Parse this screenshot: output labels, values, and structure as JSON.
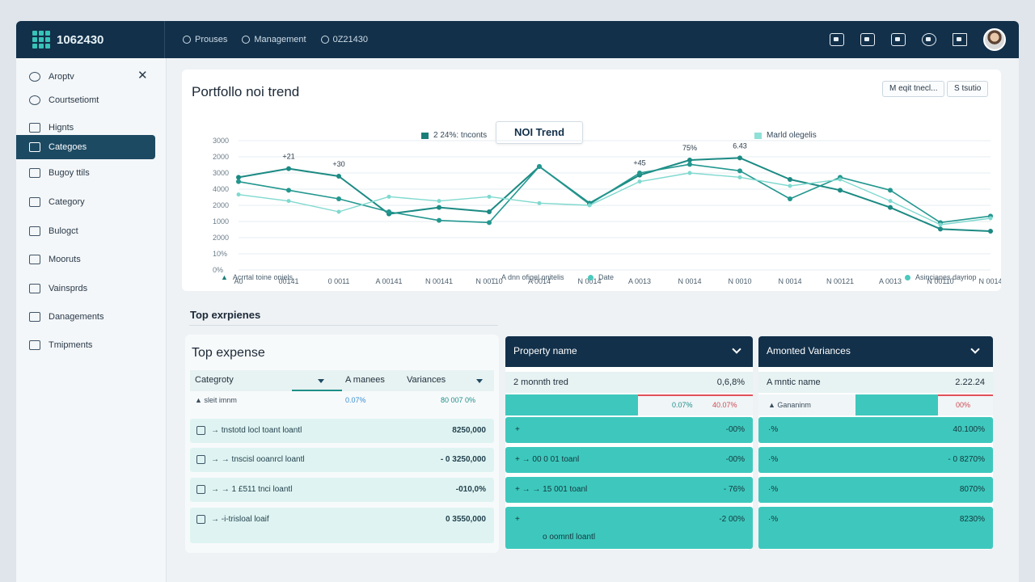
{
  "topbar": {
    "brand": "1062430",
    "nav": [
      {
        "label": "Prouses"
      },
      {
        "label": "Management"
      },
      {
        "label": "0Z21430"
      }
    ]
  },
  "sidebar": {
    "items": [
      {
        "label": "Aroptv"
      },
      {
        "label": "Courtsetiomt"
      },
      {
        "label": "Hignts"
      },
      {
        "label": "Categoes",
        "active": true
      },
      {
        "label": "Bugoy ttils"
      },
      {
        "label": "Category"
      },
      {
        "label": "Bulogct"
      },
      {
        "label": "Mooruts"
      },
      {
        "label": "Vainsprds"
      },
      {
        "label": "Danagements"
      },
      {
        "label": "Tmipments"
      }
    ]
  },
  "chart_card": {
    "title": "Portfollo noi trend",
    "chip_left": "M eqit tnecl...",
    "chip_right": "S tsutio",
    "tooltip": "NOI Trend",
    "legend_top_left": "2 24%: tnconts",
    "legend_top_right": "Marld olegelis",
    "legend_bottom": [
      {
        "label": "Acrrtal toine oniels",
        "color": "#1b7d78"
      },
      {
        "label": "A dnn ofiqel onitelis",
        "color": "#9bb2bf"
      },
      {
        "label": "Date",
        "color": "#4cc9be"
      },
      {
        "label": "Asincianes dayriop",
        "color": "#4cc9be"
      }
    ],
    "colors": {
      "primary": "#1b8a83",
      "secondary": "#7fd9cf",
      "grey": "#c9d6dc"
    }
  },
  "chart_data": {
    "type": "line",
    "yticks": [
      "3000",
      "2000",
      "3000",
      "4000",
      "2000",
      "1000",
      "2000",
      "10%",
      "0%"
    ],
    "xticks": [
      "A0",
      "00141",
      "0 0011",
      "A 00141",
      "N 00141",
      "N 00110",
      "A 0014",
      "N 0014",
      "A 0013",
      "N 0014",
      "N 0010",
      "N 0014",
      "N 00121",
      "A 0013",
      "N 00110",
      "N 0014"
    ],
    "annotations": [
      "+21",
      "+30",
      "+45",
      "75%",
      "6.43"
    ],
    "series": [
      {
        "values": [
          4300,
          4700,
          4350,
          2600,
          2900,
          2700,
          4800,
          3100,
          4400,
          5100,
          5200,
          4200,
          3700,
          2900,
          1900,
          1800
        ]
      },
      {
        "values": [
          4100,
          3700,
          3300,
          2700,
          2300,
          2200,
          4800,
          3050,
          4500,
          4900,
          4600,
          3300,
          4300,
          3700,
          2200,
          2500
        ]
      },
      {
        "values": [
          3500,
          3200,
          2700,
          3400,
          3200,
          3400,
          3100,
          3000,
          4100,
          4500,
          4300,
          3900,
          4200,
          3200,
          2100,
          2400
        ]
      }
    ],
    "ylim": [
      0,
      6000
    ]
  },
  "expenses": {
    "section_title": "Top exrpienes",
    "card_title": "Top expense",
    "col_category": "Categroty",
    "col_amanees": "A manees",
    "col_variances": "Variances",
    "subhead_label": "▲ sleit imnm",
    "subhead_pct": "0.07%",
    "subhead_var": "80 007 0%",
    "rows": [
      {
        "label": "→ tnstotd locl toant loantl",
        "value": "8250,000"
      },
      {
        "label": "→ → tnscisl ooanrcl loantl",
        "value": "- 0 3250,000"
      },
      {
        "label": "→ → 1 £511 tnci loantl",
        "value": "-010,0%"
      },
      {
        "label": "→ -i-trisloal loaif",
        "value": "0 3550,000"
      }
    ]
  },
  "property": {
    "header": "Property name",
    "subhead": "2  monnth tred",
    "subhead_val": "0,6,8%",
    "bar_pct1": "0.07%",
    "bar_pct2": "40.07%",
    "rows": [
      {
        "label": "+",
        "value": "-00%"
      },
      {
        "label": "+ → 00 0 01 toanl",
        "value": "-00%"
      },
      {
        "label": "+ → → 15 001 toanl",
        "value": "- 76%"
      },
      {
        "label": "+",
        "value": "-2 00%"
      }
    ],
    "footnote": "o oomntl loantl"
  },
  "variances": {
    "header": "Amonted Variances",
    "subhead": "A mntic name",
    "subhead_val": "2.22.24",
    "sub_label": "▲ Gananinm",
    "sub_pct": "00%",
    "rows": [
      {
        "label": "·%",
        "value": "40.100%"
      },
      {
        "label": "·%",
        "value": "- 0 8270%"
      },
      {
        "label": "·%",
        "value": "8070%"
      },
      {
        "label": "·%",
        "value": "8230%"
      }
    ]
  }
}
